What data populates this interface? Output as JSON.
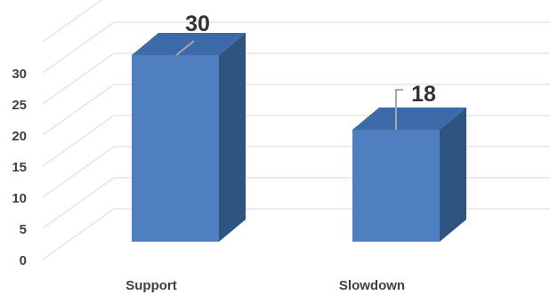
{
  "chart_data": {
    "type": "bar",
    "style": "3d-column",
    "categories": [
      "Support",
      "Slowdown"
    ],
    "values": [
      30,
      18
    ],
    "data_labels": [
      "30",
      "18"
    ],
    "y_ticks": [
      "0",
      "5",
      "10",
      "15",
      "20",
      "25",
      "30"
    ],
    "ylim": [
      0,
      35
    ],
    "grid": true,
    "legend": "none",
    "colors": {
      "front": "#4f7fc0",
      "side": "#2e5480",
      "top": "#3d6aa8",
      "grid": "#d9d9d9",
      "leader": "#a6a6a6"
    }
  }
}
